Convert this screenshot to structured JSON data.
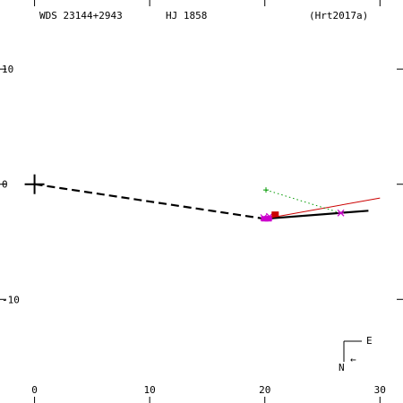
{
  "header": {
    "wds_id": "WDS 23144+2943",
    "discoverer": "HJ 1858",
    "reference": "(Hrt2017a)"
  },
  "orientation": {
    "east_label": "E",
    "north_label": "N",
    "arrow_glyph": "←"
  },
  "colors": {
    "axes": "#000000",
    "fit_orbit": "#000000",
    "alternate_orbit": "#cc0000",
    "green_series": "#009900",
    "magenta_series": "#cc00cc",
    "red_series": "#cc0000"
  },
  "chart_data": {
    "type": "scatter",
    "title": "",
    "xlabel": "",
    "ylabel": "",
    "xlim": [
      -3,
      32
    ],
    "ylim": [
      -19,
      16
    ],
    "x_ticks": [
      0,
      10,
      20,
      30
    ],
    "x_tick_labels": [
      "0",
      "10",
      "20",
      "30"
    ],
    "y_ticks": [
      10,
      0,
      -10
    ],
    "y_tick_labels": [
      "10",
      "0",
      "-10"
    ],
    "grid": false,
    "primary": {
      "x": 0,
      "y": 0,
      "marker": "plus"
    },
    "series": [
      {
        "style": "dashed",
        "color": "#000000",
        "x": [
          0,
          20
        ],
        "y": [
          0,
          -3.0
        ]
      },
      {
        "style": "solid-thick",
        "color": "#000000",
        "x": [
          20,
          29
        ],
        "y": [
          -3.0,
          -2.3
        ]
      },
      {
        "style": "solid-thin",
        "color": "#cc0000",
        "x": [
          20,
          30
        ],
        "y": [
          -3.0,
          -1.2
        ]
      },
      {
        "style": "dotted",
        "color": "#009900",
        "x": [
          20.1,
          26.6
        ],
        "y": [
          -0.5,
          -2.5
        ]
      },
      {
        "marker": "plus",
        "color": "#009900",
        "x": [
          20.1
        ],
        "y": [
          -0.5
        ]
      },
      {
        "marker": "asterisk",
        "color": "#cc00cc",
        "x": [
          26.6,
          19.9,
          20.4
        ],
        "y": [
          -2.5,
          -2.9,
          -2.8
        ]
      },
      {
        "marker": "square",
        "color": "#cc00cc",
        "x": [
          20.0,
          20.3
        ],
        "y": [
          -3.0,
          -3.0
        ]
      },
      {
        "marker": "square",
        "color": "#cc0000",
        "x": [
          20.9
        ],
        "y": [
          -2.6
        ]
      }
    ]
  }
}
